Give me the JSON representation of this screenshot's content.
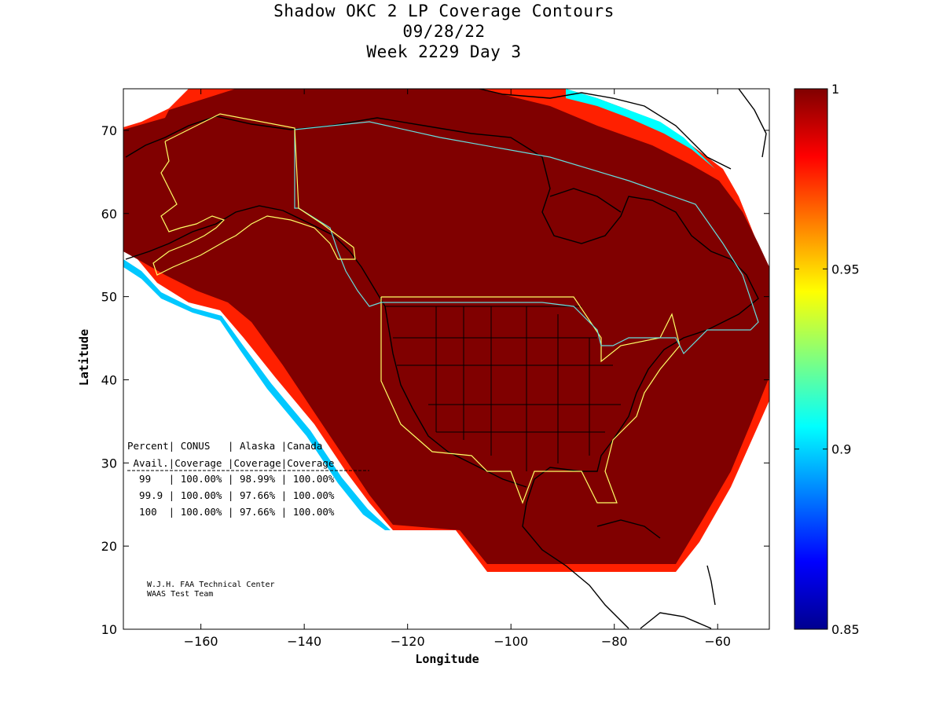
{
  "title": {
    "line1": "Shadow OKC 2 LP Coverage Contours",
    "line2": "09/28/22",
    "line3": "Week 2229 Day 3"
  },
  "axes": {
    "xlabel": "Longitude",
    "ylabel": "Latitude",
    "xlim": [
      -175,
      -50
    ],
    "ylim": [
      10,
      75
    ],
    "xticks": [
      -160,
      -140,
      -120,
      -100,
      -80,
      -60
    ],
    "yticks": [
      10,
      20,
      30,
      40,
      50,
      60,
      70
    ]
  },
  "colorbar": {
    "min": 0.85,
    "max": 1,
    "ticks": [
      {
        "value": 1,
        "label": "1"
      },
      {
        "value": 0.95,
        "label": "0.95"
      },
      {
        "value": 0.9,
        "label": "0.9"
      },
      {
        "value": 0.85,
        "label": "0.85"
      }
    ]
  },
  "colors": {
    "coverage_full": "#800000",
    "conus_boundary": "#ffff66",
    "canada_boundary": "#66dddd",
    "coastline": "#000000"
  },
  "table": {
    "header1": "Percent| CONUS   | Alaska |Canada",
    "header2": " Avail.|Coverage |Coverage|Coverage",
    "rows": [
      "  99   | 100.00% | 98.99% | 100.00%",
      "  99.9 | 100.00% | 97.66% | 100.00%",
      "  100  | 100.00% | 97.66% | 100.00%"
    ]
  },
  "credit": {
    "line1": "W.J.H. FAA Technical Center",
    "line2": "WAAS Test Team"
  }
}
